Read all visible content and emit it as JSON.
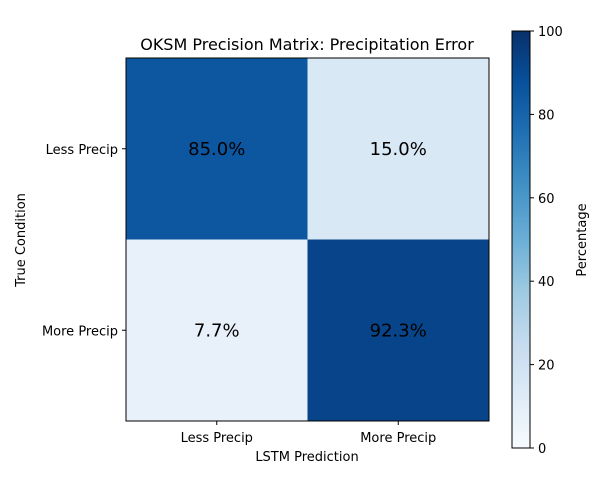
{
  "chart_data": {
    "type": "heatmap",
    "title": "OKSM Precision Matrix: Precipitation Error",
    "xlabel": "LSTM Prediction",
    "ylabel": "True Condition",
    "x_categories": [
      "Less Precip",
      "More Precip"
    ],
    "y_categories": [
      "Less Precip",
      "More Precip"
    ],
    "values": [
      [
        85.0,
        15.0
      ],
      [
        7.7,
        92.3
      ]
    ],
    "cell_labels": [
      [
        "85.0%",
        "15.0%"
      ],
      [
        "7.7%",
        "92.3%"
      ]
    ],
    "colormap": "Blues",
    "colorbar": {
      "label": "Percentage",
      "range": [
        0,
        100
      ],
      "ticks": [
        "0",
        "20",
        "40",
        "60",
        "80",
        "100"
      ]
    }
  }
}
